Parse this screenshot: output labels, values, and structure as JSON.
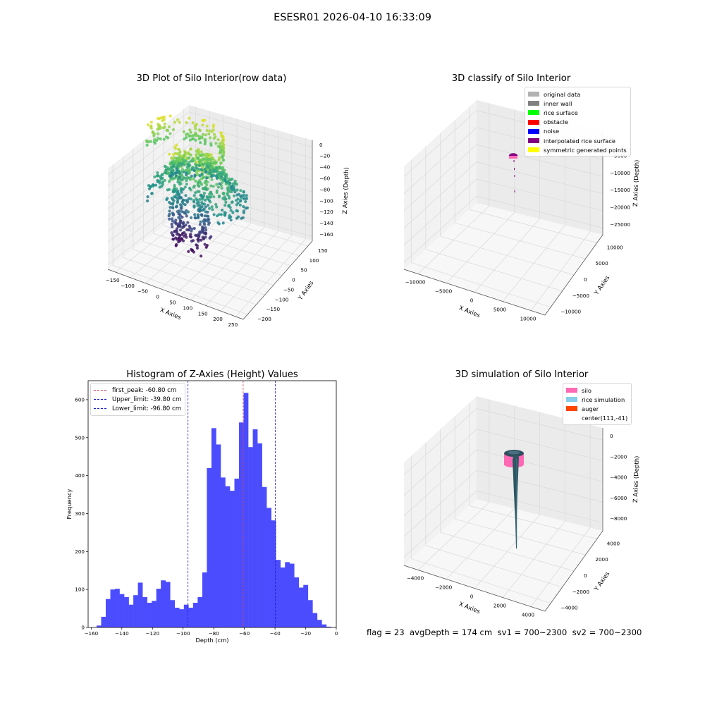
{
  "suptitle": "ESESR01 2026-04-10 16:33:09",
  "footer": "flag = 23  avgDepth = 174 cm  sv1 = 700~2300  sv2 = 700~2300",
  "colors": {
    "histogram_bar": "#4c4cff",
    "first_peak_line": "#d6404e",
    "limit_lines": "#1a1acc",
    "viridis_low": "#440154",
    "viridis_high": "#fde725",
    "silo": "#ff69b4",
    "auger": "#ff4500",
    "rice_simulation": "#87ceeb"
  },
  "chart_data": [
    {
      "type": "scatter",
      "title": "3D Plot of Silo Interior(row data)",
      "xlabel": "X Axies",
      "ylabel": "Y Axies",
      "zlabel": "Z Axies (Depth)",
      "x_ticks": [
        "−150",
        "−100",
        "−50",
        "0",
        "50",
        "100",
        "150",
        "200",
        "250"
      ],
      "y_ticks": [
        "−200",
        "−150",
        "−100",
        "−50",
        "0",
        "50",
        "100",
        "150"
      ],
      "z_ticks": [
        "0",
        "−20",
        "−40",
        "−60",
        "−80",
        "−100",
        "−120",
        "−140",
        "−160"
      ],
      "xlim": [
        -160,
        260
      ],
      "ylim": [
        -210,
        160
      ],
      "zlim": [
        -165,
        2
      ],
      "grid": true,
      "colormap": "viridis"
    },
    {
      "type": "scatter",
      "title": "3D classify of Silo Interior",
      "xlabel": "X Axies",
      "ylabel": "Y Axies",
      "zlabel": "Z Axies (Depth)",
      "x_ticks": [
        "−10000",
        "−5000",
        "0",
        "5000",
        "10000"
      ],
      "y_ticks": [
        "−10000",
        "−5000",
        "0",
        "5000",
        "10000"
      ],
      "z_ticks": [
        "0",
        "−5000",
        "−10000",
        "−15000",
        "−20000",
        "−25000"
      ],
      "grid": true,
      "legend_position": "top-right",
      "legend": [
        {
          "label": "original data",
          "color": "#b3b3b3"
        },
        {
          "label": "inner wall",
          "color": "#808080"
        },
        {
          "label": "rice surface",
          "color": "#00ff00"
        },
        {
          "label": "obstacle",
          "color": "#ff0000"
        },
        {
          "label": "noise",
          "color": "#0000ff"
        },
        {
          "label": "interpolated rice surface",
          "color": "#800080"
        },
        {
          "label": "symmetric generated points",
          "color": "#ffff00"
        }
      ]
    },
    {
      "type": "bar",
      "title": "Histogram of Z-Axies (Height) Values",
      "xlabel": "Depth (cm)",
      "ylabel": "Frequency",
      "xlim": [
        -162,
        0
      ],
      "ylim": [
        0,
        650
      ],
      "x_ticks": [
        -160,
        -140,
        -120,
        -100,
        -80,
        -60,
        -40,
        -20,
        0
      ],
      "y_ticks": [
        0,
        100,
        200,
        300,
        400,
        500,
        600
      ],
      "bin_start": -156.5,
      "bin_width": 3.0,
      "values": [
        5,
        28,
        75,
        100,
        102,
        88,
        80,
        60,
        85,
        118,
        80,
        65,
        70,
        102,
        124,
        120,
        72,
        52,
        48,
        60,
        52,
        65,
        80,
        145,
        420,
        525,
        482,
        395,
        372,
        360,
        392,
        540,
        618,
        475,
        522,
        485,
        370,
        315,
        282,
        178,
        158,
        172,
        168,
        132,
        105,
        112,
        72,
        38,
        20,
        8,
        2
      ],
      "vlines": [
        {
          "label": "first_peak: -60.80 cm",
          "x": -60.8,
          "color": "#d6404e"
        },
        {
          "label": "Upper_limit: -39.80 cm",
          "x": -39.8,
          "color": "#1a1acc"
        },
        {
          "label": "Lower_limit: -96.80 cm",
          "x": -96.8,
          "color": "#1a1acc"
        }
      ],
      "legend_position": "top-left"
    },
    {
      "type": "scatter",
      "title": "3D simulation of Silo Interior",
      "xlabel": "X Axies",
      "ylabel": "Y Axies",
      "zlabel": "Z Axies (Depth)",
      "x_ticks": [
        "−4000",
        "−2000",
        "0",
        "2000",
        "4000"
      ],
      "y_ticks": [
        "−4000",
        "−2000",
        "0",
        "2000",
        "4000"
      ],
      "z_ticks": [
        "0",
        "−2000",
        "−4000",
        "−6000",
        "−8000"
      ],
      "grid": true,
      "legend_position": "top-right",
      "legend": [
        {
          "label": "silo",
          "color": "#ff69b4"
        },
        {
          "label": "rice simulation",
          "color": "#87ceeb"
        },
        {
          "label": "auger",
          "color": "#ff4500"
        },
        {
          "label": "center(111,-41)",
          "color": ""
        }
      ]
    }
  ]
}
